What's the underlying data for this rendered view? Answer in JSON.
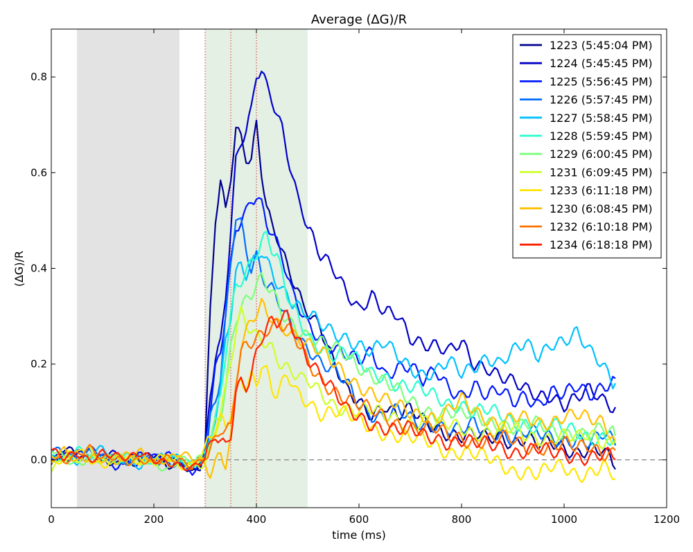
{
  "chart_data": {
    "type": "line",
    "title": "Average (∆G)/R",
    "xlabel": "time (ms)",
    "ylabel": "(∆G)/R",
    "xlim": [
      0,
      1200
    ],
    "ylim": [
      -0.1,
      0.9
    ],
    "xticks": [
      0,
      200,
      400,
      600,
      800,
      1000,
      1200
    ],
    "yticks": [
      0.0,
      0.2,
      0.4,
      0.6,
      0.8
    ],
    "ytick_labels": [
      "0.0",
      "0.2",
      "0.4",
      "0.6",
      "0.8"
    ],
    "legend_position": "top-right",
    "grid": false,
    "shaded_regions": [
      {
        "x0": 50,
        "x1": 250,
        "color": "#e3e3e3"
      },
      {
        "x0": 300,
        "x1": 500,
        "color": "#e5f0e5"
      }
    ],
    "vertical_markers": {
      "values": [
        300,
        350,
        400
      ],
      "color": "#d62728",
      "style": "dotted"
    },
    "baseline": {
      "y": 0,
      "color": "#7f7f7f",
      "style": "dashed"
    },
    "x": [
      0,
      25,
      50,
      75,
      100,
      125,
      150,
      175,
      200,
      225,
      250,
      275,
      290,
      300,
      310,
      320,
      330,
      340,
      350,
      360,
      370,
      380,
      390,
      400,
      410,
      420,
      430,
      440,
      450,
      460,
      470,
      480,
      490,
      500,
      525,
      550,
      575,
      600,
      625,
      650,
      675,
      700,
      725,
      750,
      775,
      800,
      825,
      850,
      875,
      900,
      925,
      950,
      975,
      1000,
      1025,
      1050,
      1075,
      1100
    ],
    "series": [
      {
        "name": "1223 (5:45:04 PM)",
        "color": "#00008f",
        "values": [
          -0.01,
          0.02,
          0.01,
          0.0,
          0.01,
          -0.01,
          0.0,
          0.0,
          0.01,
          -0.01,
          0.0,
          -0.03,
          -0.02,
          0.02,
          0.3,
          0.5,
          0.58,
          0.52,
          0.6,
          0.7,
          0.68,
          0.64,
          0.63,
          0.7,
          0.6,
          0.52,
          0.48,
          0.46,
          0.43,
          0.4,
          0.38,
          0.36,
          0.33,
          0.32,
          0.28,
          0.2,
          0.14,
          0.12,
          0.1,
          0.12,
          0.09,
          0.1,
          0.08,
          0.07,
          0.06,
          0.05,
          0.05,
          0.04,
          0.05,
          0.04,
          0.05,
          0.03,
          0.03,
          0.02,
          0.02,
          0.03,
          0.02,
          -0.02
        ]
      },
      {
        "name": "1224 (5:45:45 PM)",
        "color": "#0000c8",
        "values": [
          0.0,
          0.01,
          0.02,
          0.01,
          0.0,
          0.01,
          -0.01,
          0.0,
          0.01,
          0.0,
          -0.01,
          -0.02,
          -0.01,
          0.02,
          0.15,
          0.22,
          0.25,
          0.35,
          0.48,
          0.62,
          0.66,
          0.68,
          0.72,
          0.8,
          0.81,
          0.78,
          0.76,
          0.73,
          0.7,
          0.65,
          0.6,
          0.55,
          0.52,
          0.48,
          0.42,
          0.4,
          0.36,
          0.32,
          0.34,
          0.3,
          0.3,
          0.26,
          0.25,
          0.24,
          0.22,
          0.24,
          0.2,
          0.2,
          0.18,
          0.16,
          0.14,
          0.13,
          0.14,
          0.12,
          0.13,
          0.14,
          0.12,
          0.11
        ]
      },
      {
        "name": "1225 (5:56:45 PM)",
        "color": "#0018ff",
        "values": [
          0.01,
          0.0,
          0.01,
          0.02,
          0.0,
          -0.01,
          0.0,
          0.01,
          0.0,
          0.01,
          0.0,
          -0.02,
          -0.01,
          0.01,
          0.1,
          0.18,
          0.22,
          0.3,
          0.4,
          0.48,
          0.5,
          0.52,
          0.55,
          0.56,
          0.54,
          0.5,
          0.48,
          0.45,
          0.42,
          0.38,
          0.34,
          0.32,
          0.3,
          0.28,
          0.26,
          0.24,
          0.22,
          0.2,
          0.22,
          0.18,
          0.2,
          0.2,
          0.16,
          0.18,
          0.15,
          0.14,
          0.16,
          0.13,
          0.14,
          0.12,
          0.14,
          0.12,
          0.14,
          0.13,
          0.15,
          0.14,
          0.16,
          0.17
        ]
      },
      {
        "name": "1226 (5:57:45 PM)",
        "color": "#006cff",
        "values": [
          0.02,
          0.01,
          0.0,
          0.02,
          0.01,
          0.0,
          -0.01,
          0.01,
          0.0,
          0.0,
          -0.01,
          -0.02,
          0.0,
          0.02,
          0.08,
          0.12,
          0.18,
          0.3,
          0.42,
          0.52,
          0.5,
          0.44,
          0.4,
          0.42,
          0.38,
          0.36,
          0.35,
          0.33,
          0.32,
          0.3,
          0.28,
          0.27,
          0.25,
          0.24,
          0.2,
          0.18,
          0.16,
          0.12,
          0.1,
          0.09,
          0.1,
          0.08,
          0.07,
          0.08,
          0.07,
          0.06,
          0.07,
          0.05,
          0.06,
          0.05,
          0.06,
          0.05,
          0.04,
          0.04,
          0.05,
          0.04,
          0.05,
          0.03
        ]
      },
      {
        "name": "1227 (5:58:45 PM)",
        "color": "#00c0ff",
        "values": [
          0.0,
          0.01,
          0.0,
          0.01,
          0.02,
          0.0,
          0.0,
          -0.01,
          0.01,
          0.0,
          0.0,
          -0.01,
          0.0,
          0.01,
          0.05,
          0.1,
          0.15,
          0.25,
          0.3,
          0.38,
          0.4,
          0.38,
          0.4,
          0.42,
          0.44,
          0.42,
          0.4,
          0.38,
          0.36,
          0.35,
          0.33,
          0.32,
          0.3,
          0.3,
          0.28,
          0.27,
          0.26,
          0.24,
          0.22,
          0.24,
          0.22,
          0.2,
          0.18,
          0.18,
          0.2,
          0.18,
          0.2,
          0.22,
          0.2,
          0.22,
          0.24,
          0.22,
          0.25,
          0.25,
          0.26,
          0.22,
          0.2,
          0.16
        ]
      },
      {
        "name": "1228 (5:59:45 PM)",
        "color": "#29ffce",
        "values": [
          0.01,
          0.0,
          0.02,
          0.0,
          0.01,
          0.0,
          0.01,
          0.0,
          -0.01,
          0.0,
          0.01,
          -0.01,
          0.0,
          0.01,
          0.04,
          0.08,
          0.12,
          0.22,
          0.3,
          0.36,
          0.38,
          0.4,
          0.42,
          0.44,
          0.46,
          0.47,
          0.44,
          0.42,
          0.38,
          0.34,
          0.31,
          0.3,
          0.28,
          0.26,
          0.24,
          0.22,
          0.22,
          0.2,
          0.18,
          0.18,
          0.16,
          0.15,
          0.14,
          0.13,
          0.12,
          0.12,
          0.1,
          0.1,
          0.09,
          0.08,
          0.08,
          0.07,
          0.07,
          0.06,
          0.06,
          0.05,
          0.05,
          0.04
        ]
      },
      {
        "name": "1229 (6:00:45 PM)",
        "color": "#7dff7a",
        "values": [
          0.02,
          0.0,
          -0.01,
          0.01,
          0.0,
          0.01,
          -0.01,
          0.0,
          0.0,
          -0.02,
          0.0,
          -0.01,
          0.0,
          0.0,
          0.04,
          0.08,
          0.1,
          0.16,
          0.24,
          0.3,
          0.32,
          0.33,
          0.34,
          0.36,
          0.37,
          0.36,
          0.35,
          0.33,
          0.31,
          0.3,
          0.29,
          0.28,
          0.27,
          0.26,
          0.24,
          0.23,
          0.22,
          0.2,
          0.18,
          0.16,
          0.14,
          0.12,
          0.11,
          0.1,
          0.1,
          0.09,
          0.09,
          0.08,
          0.08,
          0.07,
          0.07,
          0.07,
          0.06,
          0.06,
          0.06,
          0.05,
          0.06,
          0.05
        ]
      },
      {
        "name": "1231 (6:09:45 PM)",
        "color": "#ceff29",
        "values": [
          -0.02,
          0.01,
          0.0,
          0.02,
          -0.01,
          0.0,
          0.01,
          0.0,
          -0.01,
          0.0,
          0.0,
          -0.01,
          -0.01,
          0.0,
          0.02,
          0.06,
          0.1,
          0.14,
          0.2,
          0.26,
          0.3,
          0.28,
          0.27,
          0.26,
          0.26,
          0.25,
          0.24,
          0.22,
          0.2,
          0.19,
          0.18,
          0.17,
          0.16,
          0.16,
          0.14,
          0.12,
          0.11,
          0.1,
          0.1,
          0.09,
          0.09,
          0.08,
          0.08,
          0.07,
          0.07,
          0.07,
          0.06,
          0.06,
          0.06,
          0.06,
          0.05,
          0.05,
          0.05,
          0.05,
          0.04,
          0.05,
          0.04,
          0.04
        ]
      },
      {
        "name": "1233 (6:11:18 PM)",
        "color": "#ffe600",
        "values": [
          -0.01,
          0.0,
          0.02,
          0.0,
          -0.01,
          0.01,
          0.0,
          -0.01,
          0.0,
          0.01,
          -0.01,
          -0.01,
          0.0,
          0.02,
          0.04,
          0.06,
          0.08,
          0.07,
          0.1,
          0.14,
          0.18,
          0.16,
          0.18,
          0.16,
          0.2,
          0.18,
          0.14,
          0.13,
          0.15,
          0.17,
          0.16,
          0.14,
          0.13,
          0.13,
          0.1,
          0.1,
          0.09,
          0.08,
          0.07,
          0.06,
          0.05,
          0.04,
          0.04,
          0.03,
          0.02,
          0.02,
          0.01,
          0.0,
          -0.01,
          -0.02,
          -0.02,
          -0.03,
          -0.02,
          -0.02,
          -0.03,
          -0.02,
          -0.01,
          -0.04
        ]
      },
      {
        "name": "1230 (6:08:45 PM)",
        "color": "#ffc000",
        "values": [
          0.0,
          0.02,
          0.0,
          0.01,
          0.0,
          -0.01,
          0.01,
          0.02,
          0.0,
          0.0,
          0.01,
          0.0,
          0.0,
          -0.01,
          -0.02,
          0.0,
          0.02,
          0.0,
          0.05,
          0.15,
          0.24,
          0.26,
          0.28,
          0.3,
          0.32,
          0.3,
          0.3,
          0.29,
          0.28,
          0.28,
          0.27,
          0.26,
          0.25,
          0.24,
          0.22,
          0.2,
          0.18,
          0.16,
          0.14,
          0.12,
          0.11,
          0.1,
          0.1,
          0.09,
          0.1,
          0.12,
          0.1,
          0.09,
          0.08,
          0.09,
          0.08,
          0.07,
          0.08,
          0.1,
          0.1,
          0.08,
          0.07,
          0.04
        ]
      },
      {
        "name": "1232 (6:10:18 PM)",
        "color": "#ff7400",
        "values": [
          0.01,
          0.0,
          0.01,
          0.02,
          0.0,
          0.01,
          0.0,
          0.0,
          -0.01,
          0.0,
          0.0,
          -0.01,
          0.0,
          0.01,
          0.02,
          0.04,
          0.06,
          0.05,
          0.06,
          0.16,
          0.22,
          0.24,
          0.25,
          0.26,
          0.27,
          0.28,
          0.28,
          0.29,
          0.28,
          0.27,
          0.26,
          0.24,
          0.22,
          0.2,
          0.17,
          0.15,
          0.13,
          0.11,
          0.1,
          0.09,
          0.08,
          0.07,
          0.06,
          0.06,
          0.05,
          0.05,
          0.04,
          0.04,
          0.04,
          0.04,
          0.03,
          0.03,
          0.03,
          0.03,
          0.02,
          0.03,
          0.02,
          0.02
        ]
      },
      {
        "name": "1234 (6:18:18 PM)",
        "color": "#ff2000",
        "values": [
          0.02,
          0.0,
          0.01,
          0.0,
          0.02,
          0.01,
          0.0,
          0.01,
          0.0,
          0.0,
          -0.01,
          -0.02,
          -0.01,
          0.0,
          0.02,
          0.05,
          0.04,
          0.03,
          0.06,
          0.15,
          0.17,
          0.16,
          0.18,
          0.22,
          0.25,
          0.27,
          0.28,
          0.28,
          0.29,
          0.3,
          0.28,
          0.26,
          0.24,
          0.22,
          0.18,
          0.14,
          0.1,
          0.09,
          0.08,
          0.07,
          0.06,
          0.06,
          0.05,
          0.05,
          0.04,
          0.04,
          0.03,
          0.03,
          0.03,
          0.02,
          0.02,
          0.02,
          0.01,
          0.01,
          0.01,
          0.01,
          0.01,
          0.0
        ]
      }
    ]
  }
}
